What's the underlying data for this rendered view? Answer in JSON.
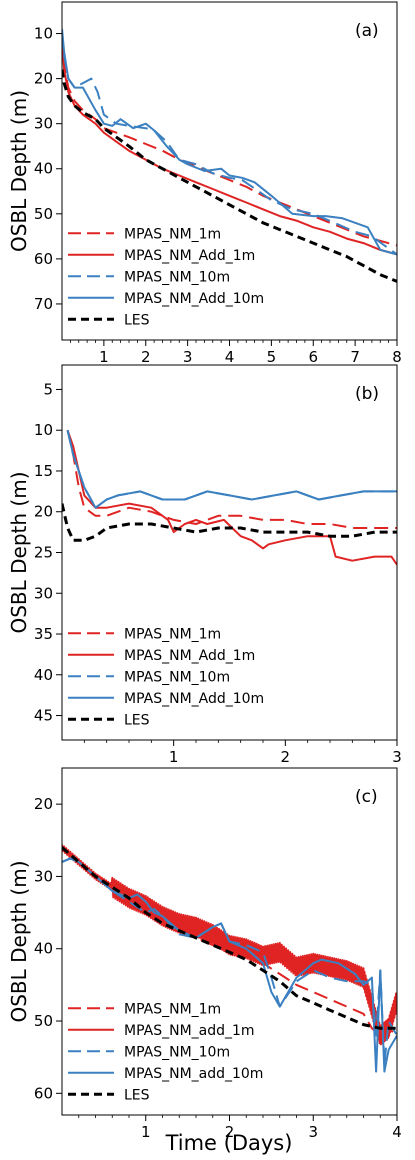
{
  "colors": {
    "red": "#e02424",
    "blue": "#3b80c0",
    "black": "#000000"
  },
  "chart_data": [
    {
      "type": "line",
      "panel_label": "(a)",
      "ylabel": "OSBL Depth (m)",
      "xlabel": "",
      "xlim": [
        0,
        8
      ],
      "ylim": [
        78,
        3
      ],
      "y_inverted": true,
      "xticks": [
        1,
        2,
        3,
        4,
        5,
        6,
        7,
        8
      ],
      "yticks": [
        10,
        20,
        30,
        40,
        50,
        60,
        70
      ],
      "legend_position": "lower-left",
      "series": [
        {
          "name": "MPAS_NM_1m",
          "color": "#e02424",
          "dash": "dashed",
          "x": [
            0,
            0.05,
            0.15,
            0.3,
            0.5,
            0.8,
            1.0,
            1.3,
            1.6,
            2.0,
            2.4,
            2.8,
            3.2,
            3.6,
            4.0,
            4.4,
            4.8,
            5.2,
            5.6,
            6.0,
            6.4,
            6.8,
            7.2,
            7.6,
            8.0
          ],
          "y": [
            11,
            17,
            22,
            25,
            27,
            29,
            31,
            32,
            33,
            34.5,
            36,
            38,
            39.5,
            41,
            42.5,
            44,
            46,
            47.5,
            49,
            50.5,
            52,
            53.5,
            55,
            56,
            57
          ]
        },
        {
          "name": "MPAS_NM_Add_1m",
          "color": "#e02424",
          "dash": "solid",
          "x": [
            0,
            0.05,
            0.15,
            0.3,
            0.5,
            0.8,
            1.0,
            1.3,
            1.6,
            2.0,
            2.4,
            2.8,
            3.2,
            3.6,
            4.0,
            4.4,
            4.8,
            5.2,
            5.6,
            6.0,
            6.4,
            6.8,
            7.2,
            7.6,
            8.0
          ],
          "y": [
            11,
            18,
            23,
            26,
            28,
            30,
            32,
            34,
            36,
            38,
            40,
            41.5,
            43,
            44.5,
            46,
            47.5,
            49,
            50.5,
            51.5,
            53,
            54,
            55.5,
            56.5,
            58,
            59
          ]
        },
        {
          "name": "MPAS_NM_10m",
          "color": "#3b80c0",
          "dash": "dashed",
          "x": [
            0,
            0.05,
            0.15,
            0.3,
            0.5,
            0.7,
            0.85,
            1.0,
            1.3,
            1.6,
            2.0,
            2.2,
            2.5,
            2.8,
            3.2,
            3.6,
            4.0,
            4.3,
            4.7,
            5.0,
            5.5,
            6.0,
            6.5,
            7.0,
            7.4,
            7.7,
            8.0
          ],
          "y": [
            10,
            15,
            20,
            22,
            21,
            20,
            23,
            28,
            30,
            30.5,
            31,
            31.5,
            34,
            38,
            39,
            41,
            42,
            42.5,
            45,
            47,
            49,
            50,
            52,
            54,
            55,
            57,
            59
          ]
        },
        {
          "name": "MPAS_NM_Add_10m",
          "color": "#3b80c0",
          "dash": "solid",
          "x": [
            0,
            0.05,
            0.15,
            0.3,
            0.5,
            0.8,
            1.0,
            1.2,
            1.4,
            1.7,
            2.0,
            2.2,
            2.5,
            2.8,
            3.0,
            3.4,
            3.8,
            4.0,
            4.3,
            4.6,
            5.0,
            5.5,
            6.0,
            6.3,
            6.7,
            7.0,
            7.3,
            7.6,
            8.0
          ],
          "y": [
            9,
            14,
            20,
            22,
            22,
            27,
            30,
            30.5,
            29,
            31,
            30,
            31.5,
            35,
            38,
            39,
            40.5,
            40,
            41.5,
            42,
            43,
            46,
            50,
            50.5,
            50.5,
            51,
            52,
            53,
            58,
            59
          ]
        },
        {
          "name": "LES",
          "color": "#000000",
          "dash": "heavy-dashed",
          "x": [
            0,
            0.05,
            0.15,
            0.3,
            0.5,
            0.8,
            1.0,
            1.3,
            1.6,
            2.0,
            2.4,
            2.8,
            3.2,
            3.6,
            4.0,
            4.4,
            4.8,
            5.2,
            5.6,
            6.0,
            6.4,
            6.8,
            7.2,
            7.6,
            8.0
          ],
          "y": [
            18,
            21,
            24,
            26,
            27.5,
            29,
            31,
            33,
            35,
            38,
            40,
            42,
            44,
            46,
            48,
            50,
            52,
            53.5,
            55,
            56.5,
            58,
            59.5,
            61.5,
            63.5,
            65
          ]
        }
      ]
    },
    {
      "type": "line",
      "panel_label": "(b)",
      "ylabel": "OSBL Depth (m)",
      "xlabel": "",
      "xlim": [
        0,
        3
      ],
      "ylim": [
        48,
        2
      ],
      "y_inverted": true,
      "xticks": [
        1,
        2,
        3
      ],
      "yticks": [
        5,
        10,
        15,
        20,
        25,
        30,
        35,
        40,
        45
      ],
      "legend_position": "lower-left",
      "series": [
        {
          "name": "MPAS_NM_1m",
          "color": "#e02424",
          "dash": "dashed",
          "x": [
            0.05,
            0.1,
            0.15,
            0.2,
            0.3,
            0.4,
            0.6,
            0.8,
            1.0,
            1.2,
            1.4,
            1.6,
            1.8,
            2.0,
            2.2,
            2.4,
            2.6,
            2.8,
            3.0
          ],
          "y": [
            10,
            13,
            17,
            19.5,
            20.5,
            20.5,
            19.5,
            20,
            21,
            21.5,
            20.5,
            20.5,
            21,
            21,
            21.5,
            21.5,
            22,
            22,
            22
          ]
        },
        {
          "name": "MPAS_NM_Add_1m",
          "color": "#e02424",
          "dash": "solid",
          "x": [
            0.05,
            0.1,
            0.15,
            0.2,
            0.3,
            0.4,
            0.6,
            0.8,
            0.95,
            1.0,
            1.1,
            1.2,
            1.3,
            1.45,
            1.6,
            1.7,
            1.8,
            1.85,
            2.0,
            2.2,
            2.4,
            2.45,
            2.6,
            2.8,
            2.95,
            3.0
          ],
          "y": [
            10,
            12,
            15,
            18,
            19.5,
            19.5,
            19,
            19.5,
            21,
            22.5,
            21.5,
            21,
            21.5,
            21,
            23,
            23.5,
            24.5,
            24,
            23.5,
            23,
            23,
            25.5,
            26,
            25.5,
            25.5,
            26.5
          ]
        },
        {
          "name": "MPAS_NM_10m",
          "color": "#3b80c0",
          "dash": "dashed",
          "x": [
            0.05,
            0.1,
            0.2,
            0.3,
            0.4,
            0.5,
            0.7,
            0.9,
            1.1,
            1.3,
            1.5,
            1.7,
            1.9,
            2.1,
            2.3,
            2.5,
            2.7,
            2.9,
            3.0
          ],
          "y": [
            10,
            13,
            17,
            19.5,
            18.5,
            18,
            17.5,
            18.5,
            18.5,
            17.5,
            18,
            18.5,
            18,
            17.5,
            18.5,
            18,
            17.5,
            17.5,
            17.5
          ]
        },
        {
          "name": "MPAS_NM_Add_10m",
          "color": "#3b80c0",
          "dash": "solid",
          "x": [
            0.05,
            0.1,
            0.2,
            0.3,
            0.4,
            0.5,
            0.7,
            0.9,
            1.1,
            1.3,
            1.5,
            1.7,
            1.9,
            2.1,
            2.3,
            2.5,
            2.7,
            2.9,
            3.0
          ],
          "y": [
            10,
            13,
            17,
            19.5,
            18.5,
            18,
            17.5,
            18.5,
            18.5,
            17.5,
            18,
            18.5,
            18,
            17.5,
            18.5,
            18,
            17.5,
            17.5,
            17.5
          ]
        },
        {
          "name": "LES",
          "color": "#000000",
          "dash": "heavy-dashed",
          "x": [
            0,
            0.05,
            0.1,
            0.2,
            0.3,
            0.4,
            0.6,
            0.8,
            1.0,
            1.2,
            1.4,
            1.6,
            1.8,
            2.0,
            2.2,
            2.4,
            2.6,
            2.8,
            3.0
          ],
          "y": [
            19,
            22,
            23.5,
            23.5,
            23,
            22,
            21.5,
            21.5,
            22,
            22.5,
            22,
            22,
            22.5,
            22.5,
            22.5,
            23,
            23,
            22.5,
            22.5
          ]
        }
      ]
    },
    {
      "type": "line",
      "panel_label": "(c)",
      "ylabel": "OSBL Depth (m)",
      "xlabel": "Time (Days)",
      "xlim": [
        0,
        4
      ],
      "ylim": [
        63,
        15
      ],
      "y_inverted": true,
      "xticks": [
        1,
        2,
        3,
        4
      ],
      "yticks": [
        20,
        30,
        40,
        50,
        60
      ],
      "legend_position": "lower-left",
      "series": [
        {
          "name": "MPAS_NM_1m",
          "color": "#e02424",
          "dash": "dashed",
          "x": [
            0,
            0.2,
            0.4,
            0.6,
            0.8,
            1.0,
            1.2,
            1.4,
            1.6,
            1.8,
            2.0,
            2.2,
            2.4,
            2.6,
            2.8,
            3.0,
            3.2,
            3.4,
            3.6,
            3.7,
            3.8,
            3.9,
            4.0
          ],
          "y": [
            26,
            28,
            30,
            32,
            33.5,
            35,
            36.5,
            37.5,
            38.5,
            39.5,
            40.5,
            41,
            42,
            43.5,
            45,
            46,
            47,
            48,
            49,
            51,
            52,
            51,
            52
          ]
        },
        {
          "name": "MPAS_NM_add_1m",
          "color": "#e02424",
          "dash": "solid",
          "jitter": true,
          "x": [
            0,
            0.2,
            0.4,
            0.6,
            0.8,
            1.0,
            1.2,
            1.4,
            1.6,
            1.8,
            2.0,
            2.2,
            2.4,
            2.6,
            2.8,
            3.0,
            3.2,
            3.4,
            3.6,
            3.7,
            3.8,
            3.9,
            4.0
          ],
          "y": [
            26,
            28,
            30,
            31.5,
            33,
            34,
            35.5,
            36.5,
            37,
            38,
            39.5,
            40,
            41,
            40.5,
            42.5,
            42,
            42.5,
            43,
            44,
            48,
            52,
            51,
            47
          ]
        },
        {
          "name": "MPAS_NM_10m",
          "color": "#3b80c0",
          "dash": "dashed",
          "x": [
            0,
            0.1,
            0.2,
            0.4,
            0.6,
            0.8,
            1.0,
            1.1,
            1.2,
            1.4,
            1.6,
            1.8,
            1.9,
            2.0,
            2.2,
            2.4,
            2.5,
            2.6,
            2.8,
            3.0,
            3.2,
            3.4,
            3.6,
            3.7,
            3.75,
            3.8,
            3.85,
            3.9,
            4.0
          ],
          "y": [
            28,
            27.5,
            28,
            30,
            32,
            33.5,
            35,
            34.5,
            35.5,
            38,
            38.5,
            37,
            36.5,
            39,
            39.5,
            40.5,
            44,
            48,
            44.5,
            43,
            44,
            44.5,
            44.5,
            45,
            52,
            43,
            56,
            50,
            52
          ]
        },
        {
          "name": "MPAS_NM_add_10m",
          "color": "#3b80c0",
          "dash": "solid",
          "x": [
            0,
            0.1,
            0.2,
            0.4,
            0.6,
            0.8,
            0.9,
            1.0,
            1.1,
            1.2,
            1.4,
            1.6,
            1.8,
            1.9,
            2.0,
            2.2,
            2.4,
            2.5,
            2.6,
            2.8,
            3.0,
            3.1,
            3.3,
            3.5,
            3.6,
            3.7,
            3.75,
            3.8,
            3.85,
            3.9,
            4.0
          ],
          "y": [
            28,
            27.5,
            28,
            30,
            32,
            33,
            32.5,
            33.5,
            35,
            35.5,
            37.5,
            38.5,
            37,
            36.5,
            39,
            40,
            42,
            46,
            48,
            44,
            42,
            41.5,
            42,
            43.5,
            45,
            44,
            57,
            43,
            57,
            54,
            52
          ]
        },
        {
          "name": "LES",
          "color": "#000000",
          "dash": "heavy-dashed",
          "x": [
            0,
            0.2,
            0.4,
            0.6,
            0.8,
            1.0,
            1.2,
            1.4,
            1.6,
            1.8,
            2.0,
            2.2,
            2.4,
            2.6,
            2.8,
            3.0,
            3.2,
            3.4,
            3.6,
            3.8,
            4.0
          ],
          "y": [
            26,
            28,
            30,
            31.5,
            33,
            35,
            36.5,
            37.5,
            38.5,
            39.5,
            40.5,
            41.5,
            43,
            44.5,
            46.5,
            47.5,
            48.5,
            49.5,
            50.5,
            51,
            51
          ]
        }
      ]
    }
  ]
}
